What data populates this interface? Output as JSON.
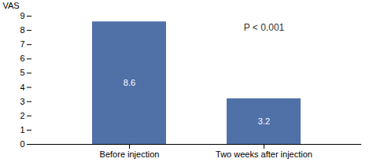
{
  "chart_data": {
    "type": "bar",
    "categories": [
      "Before injection",
      "Two weeks after injection"
    ],
    "values": [
      8.6,
      3.2
    ],
    "color": "#5070a8",
    "ylabel": "VAS",
    "ylim": [
      0,
      9
    ],
    "yticks": [
      0,
      1,
      2,
      3,
      4,
      5,
      6,
      7,
      8,
      9
    ],
    "annotation": "P < 0.001",
    "data_labels": true,
    "grid": false
  }
}
